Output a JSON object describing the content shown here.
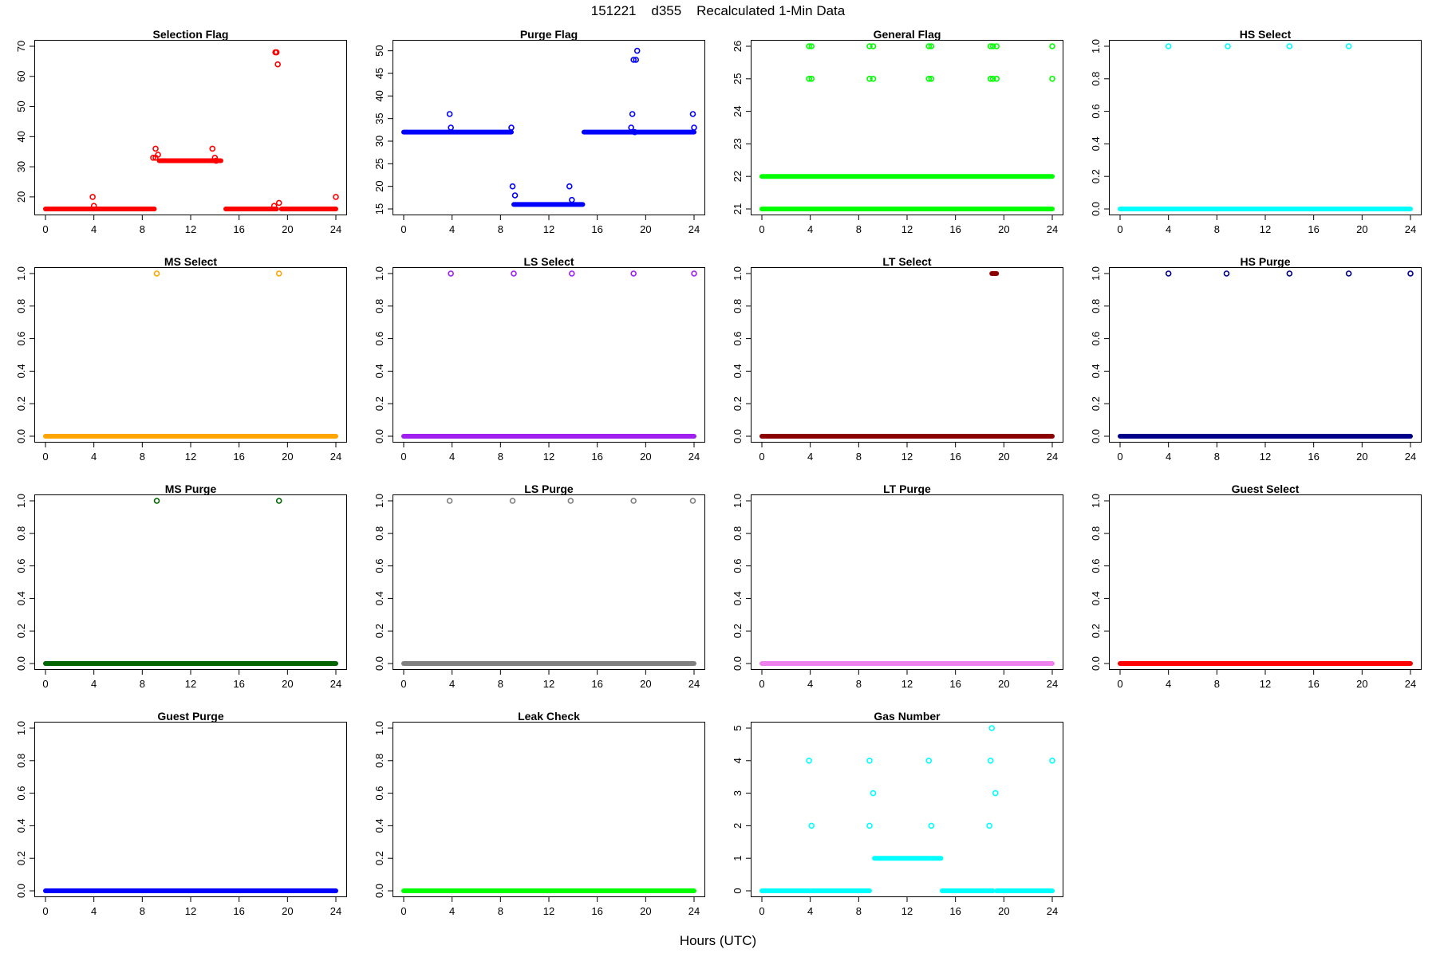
{
  "figure": {
    "title": "151221    d355    Recalculated 1-Min Data",
    "xlabel": "Hours (UTC)"
  },
  "chart_data": [
    {
      "type": "scatter",
      "title": "Selection Flag",
      "color": "#ff0000",
      "xlim": [
        0,
        24
      ],
      "xticks": [
        0,
        4,
        8,
        12,
        16,
        20,
        24
      ],
      "ylim": [
        16,
        70
      ],
      "yticks": [
        20,
        30,
        40,
        50,
        60,
        70
      ],
      "segments": [
        {
          "x": [
            0,
            9
          ],
          "y": 16
        },
        {
          "x": [
            9.4,
            14.5
          ],
          "y": 32
        },
        {
          "x": [
            14.9,
            19.1
          ],
          "y": 16
        },
        {
          "x": [
            19.5,
            24
          ],
          "y": 16
        }
      ],
      "points": [
        [
          3.9,
          20
        ],
        [
          4.0,
          17
        ],
        [
          8.9,
          33
        ],
        [
          9.1,
          36
        ],
        [
          9.1,
          33
        ],
        [
          9.3,
          34
        ],
        [
          13.8,
          36
        ],
        [
          14.0,
          33
        ],
        [
          14.1,
          32
        ],
        [
          18.9,
          17
        ],
        [
          19.0,
          68
        ],
        [
          19.1,
          68
        ],
        [
          19.2,
          64
        ],
        [
          19.3,
          18
        ],
        [
          24,
          20
        ]
      ]
    },
    {
      "type": "scatter",
      "title": "Purge Flag",
      "color": "#0000ff",
      "xlim": [
        0,
        24
      ],
      "xticks": [
        0,
        4,
        8,
        12,
        16,
        20,
        24
      ],
      "ylim": [
        15,
        51
      ],
      "yticks": [
        15,
        20,
        25,
        30,
        35,
        40,
        45,
        50
      ],
      "segments": [
        {
          "x": [
            0,
            8.9
          ],
          "y": 32
        },
        {
          "x": [
            9.1,
            14.8
          ],
          "y": 16
        },
        {
          "x": [
            14.9,
            19.1
          ],
          "y": 32
        },
        {
          "x": [
            19.3,
            24
          ],
          "y": 32
        }
      ],
      "points": [
        [
          3.8,
          36
        ],
        [
          3.9,
          33
        ],
        [
          8.9,
          33
        ],
        [
          9.0,
          20
        ],
        [
          9.2,
          18
        ],
        [
          13.7,
          20
        ],
        [
          13.9,
          17
        ],
        [
          18.8,
          33
        ],
        [
          18.9,
          36
        ],
        [
          19.0,
          48
        ],
        [
          19.2,
          48
        ],
        [
          19.3,
          50
        ],
        [
          19.1,
          32
        ],
        [
          23.9,
          36
        ],
        [
          24,
          33
        ]
      ]
    },
    {
      "type": "scatter",
      "title": "General Flag",
      "color": "#00ff00",
      "xlim": [
        0,
        24
      ],
      "xticks": [
        0,
        4,
        8,
        12,
        16,
        20,
        24
      ],
      "ylim": [
        21,
        26
      ],
      "yticks": [
        21,
        22,
        23,
        24,
        25,
        26
      ],
      "segments": [
        {
          "x": [
            0,
            24
          ],
          "y": 22
        },
        {
          "x": [
            0,
            24
          ],
          "y": 21
        }
      ],
      "points": [
        [
          3.9,
          26
        ],
        [
          4.1,
          26
        ],
        [
          3.9,
          25
        ],
        [
          4.1,
          25
        ],
        [
          8.9,
          26
        ],
        [
          9.2,
          26
        ],
        [
          8.9,
          25
        ],
        [
          9.2,
          25
        ],
        [
          13.8,
          26
        ],
        [
          14.0,
          26
        ],
        [
          13.8,
          25
        ],
        [
          14.0,
          25
        ],
        [
          18.9,
          26
        ],
        [
          19.1,
          26
        ],
        [
          19.4,
          26
        ],
        [
          18.9,
          25
        ],
        [
          19.1,
          25
        ],
        [
          19.4,
          25
        ],
        [
          24,
          26
        ],
        [
          24,
          25
        ]
      ]
    },
    {
      "type": "scatter",
      "title": "HS Select",
      "color": "#00ffff",
      "xlim": [
        0,
        24
      ],
      "xticks": [
        0,
        4,
        8,
        12,
        16,
        20,
        24
      ],
      "ylim": [
        0,
        1
      ],
      "yticks": [
        0.0,
        0.2,
        0.4,
        0.6,
        0.8,
        1.0
      ],
      "segments": [
        {
          "x": [
            0,
            24
          ],
          "y": 0
        }
      ],
      "points": [
        [
          4.0,
          1
        ],
        [
          8.9,
          1
        ],
        [
          14.0,
          1
        ],
        [
          18.9,
          1
        ]
      ]
    },
    {
      "type": "scatter",
      "title": "MS Select",
      "color": "#ffa500",
      "xlim": [
        0,
        24
      ],
      "xticks": [
        0,
        4,
        8,
        12,
        16,
        20,
        24
      ],
      "ylim": [
        0,
        1
      ],
      "yticks": [
        0.0,
        0.2,
        0.4,
        0.6,
        0.8,
        1.0
      ],
      "segments": [
        {
          "x": [
            0,
            24
          ],
          "y": 0
        }
      ],
      "points": [
        [
          9.2,
          1
        ],
        [
          19.3,
          1
        ]
      ]
    },
    {
      "type": "scatter",
      "title": "LS Select",
      "color": "#a020f0",
      "xlim": [
        0,
        24
      ],
      "xticks": [
        0,
        4,
        8,
        12,
        16,
        20,
        24
      ],
      "ylim": [
        0,
        1
      ],
      "yticks": [
        0.0,
        0.2,
        0.4,
        0.6,
        0.8,
        1.0
      ],
      "segments": [
        {
          "x": [
            0,
            24
          ],
          "y": 0
        }
      ],
      "points": [
        [
          3.9,
          1
        ],
        [
          9.1,
          1
        ],
        [
          13.9,
          1
        ],
        [
          19.0,
          1
        ],
        [
          24,
          1
        ]
      ]
    },
    {
      "type": "scatter",
      "title": "LT Select",
      "color": "#8b0000",
      "xlim": [
        0,
        24
      ],
      "xticks": [
        0,
        4,
        8,
        12,
        16,
        20,
        24
      ],
      "ylim": [
        0,
        1
      ],
      "yticks": [
        0.0,
        0.2,
        0.4,
        0.6,
        0.8,
        1.0
      ],
      "segments": [
        {
          "x": [
            0,
            24
          ],
          "y": 0
        },
        {
          "x": [
            19.0,
            19.4
          ],
          "y": 1
        }
      ],
      "points": []
    },
    {
      "type": "scatter",
      "title": "HS Purge",
      "color": "#00008b",
      "xlim": [
        0,
        24
      ],
      "xticks": [
        0,
        4,
        8,
        12,
        16,
        20,
        24
      ],
      "ylim": [
        0,
        1
      ],
      "yticks": [
        0.0,
        0.2,
        0.4,
        0.6,
        0.8,
        1.0
      ],
      "segments": [
        {
          "x": [
            0,
            24
          ],
          "y": 0
        }
      ],
      "points": [
        [
          4.0,
          1
        ],
        [
          8.8,
          1
        ],
        [
          14.0,
          1
        ],
        [
          18.9,
          1
        ],
        [
          24,
          1
        ]
      ]
    },
    {
      "type": "scatter",
      "title": "MS Purge",
      "color": "#006400",
      "xlim": [
        0,
        24
      ],
      "xticks": [
        0,
        4,
        8,
        12,
        16,
        20,
        24
      ],
      "ylim": [
        0,
        1
      ],
      "yticks": [
        0.0,
        0.2,
        0.4,
        0.6,
        0.8,
        1.0
      ],
      "segments": [
        {
          "x": [
            0,
            24
          ],
          "y": 0
        }
      ],
      "points": [
        [
          9.2,
          1
        ],
        [
          19.3,
          1
        ]
      ]
    },
    {
      "type": "scatter",
      "title": "LS Purge",
      "color": "#808080",
      "xlim": [
        0,
        24
      ],
      "xticks": [
        0,
        4,
        8,
        12,
        16,
        20,
        24
      ],
      "ylim": [
        0,
        1
      ],
      "yticks": [
        0.0,
        0.2,
        0.4,
        0.6,
        0.8,
        1.0
      ],
      "segments": [
        {
          "x": [
            0,
            24
          ],
          "y": 0
        }
      ],
      "points": [
        [
          3.8,
          1
        ],
        [
          9.0,
          1
        ],
        [
          13.8,
          1
        ],
        [
          19.0,
          1
        ],
        [
          23.9,
          1
        ]
      ]
    },
    {
      "type": "scatter",
      "title": "LT Purge",
      "color": "#ee82ee",
      "xlim": [
        0,
        24
      ],
      "xticks": [
        0,
        4,
        8,
        12,
        16,
        20,
        24
      ],
      "ylim": [
        0,
        1
      ],
      "yticks": [
        0.0,
        0.2,
        0.4,
        0.6,
        0.8,
        1.0
      ],
      "segments": [
        {
          "x": [
            0,
            24
          ],
          "y": 0
        }
      ],
      "points": []
    },
    {
      "type": "scatter",
      "title": "Guest Select",
      "color": "#ff0000",
      "xlim": [
        0,
        24
      ],
      "xticks": [
        0,
        4,
        8,
        12,
        16,
        20,
        24
      ],
      "ylim": [
        0,
        1
      ],
      "yticks": [
        0.0,
        0.2,
        0.4,
        0.6,
        0.8,
        1.0
      ],
      "segments": [
        {
          "x": [
            0,
            24
          ],
          "y": 0
        }
      ],
      "points": []
    },
    {
      "type": "scatter",
      "title": "Guest Purge",
      "color": "#0000ff",
      "xlim": [
        0,
        24
      ],
      "xticks": [
        0,
        4,
        8,
        12,
        16,
        20,
        24
      ],
      "ylim": [
        0,
        1
      ],
      "yticks": [
        0.0,
        0.2,
        0.4,
        0.6,
        0.8,
        1.0
      ],
      "segments": [
        {
          "x": [
            0,
            24
          ],
          "y": 0
        }
      ],
      "points": []
    },
    {
      "type": "scatter",
      "title": "Leak Check",
      "color": "#00ff00",
      "xlim": [
        0,
        24
      ],
      "xticks": [
        0,
        4,
        8,
        12,
        16,
        20,
        24
      ],
      "ylim": [
        0,
        1
      ],
      "yticks": [
        0.0,
        0.2,
        0.4,
        0.6,
        0.8,
        1.0
      ],
      "segments": [
        {
          "x": [
            0,
            24
          ],
          "y": 0
        }
      ],
      "points": []
    },
    {
      "type": "scatter",
      "title": "Gas Number",
      "color": "#00ffff",
      "xlim": [
        0,
        24
      ],
      "xticks": [
        0,
        4,
        8,
        12,
        16,
        20,
        24
      ],
      "ylim": [
        0,
        5
      ],
      "yticks": [
        0,
        1,
        2,
        3,
        4,
        5
      ],
      "segments": [
        {
          "x": [
            0,
            3.9
          ],
          "y": 0
        },
        {
          "x": [
            4.1,
            8.9
          ],
          "y": 0
        },
        {
          "x": [
            9.3,
            13.9
          ],
          "y": 1
        },
        {
          "x": [
            14.0,
            14.8
          ],
          "y": 1
        },
        {
          "x": [
            14.9,
            19.1
          ],
          "y": 0
        },
        {
          "x": [
            19.4,
            24
          ],
          "y": 0
        }
      ],
      "points": [
        [
          3.9,
          4
        ],
        [
          4.1,
          2
        ],
        [
          8.9,
          4
        ],
        [
          8.9,
          2
        ],
        [
          9.2,
          3
        ],
        [
          13.8,
          4
        ],
        [
          14.0,
          2
        ],
        [
          18.9,
          4
        ],
        [
          19.0,
          5
        ],
        [
          18.8,
          2
        ],
        [
          19.3,
          3
        ],
        [
          24,
          4
        ]
      ]
    }
  ]
}
